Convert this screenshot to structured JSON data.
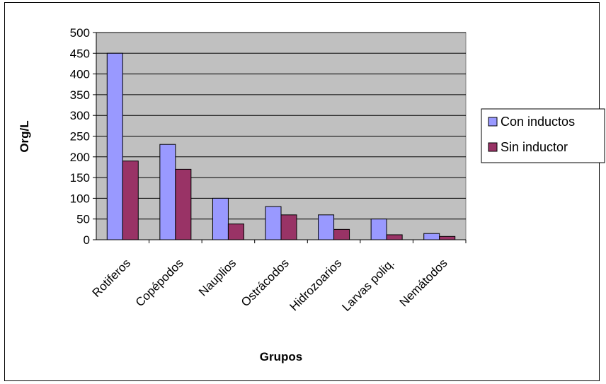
{
  "chart_data": {
    "type": "bar",
    "title": "",
    "xlabel": "Grupos",
    "ylabel": "Org/L",
    "ylim": [
      0,
      500
    ],
    "yticks": [
      0,
      50,
      100,
      150,
      200,
      250,
      300,
      350,
      400,
      450,
      500
    ],
    "grid": true,
    "legend_position": "right",
    "categories": [
      "Rotiferos",
      "Copépodos",
      "Nauplios",
      "Ostrácodos",
      "Hidrozoarios",
      "Larvas poliq.",
      "Nemátodos"
    ],
    "series": [
      {
        "name": "Con inductos",
        "color": "#9999ff",
        "values": [
          450,
          230,
          100,
          80,
          60,
          50,
          15
        ]
      },
      {
        "name": "Sin inductor",
        "color": "#993366",
        "values": [
          190,
          170,
          38,
          60,
          25,
          12,
          8
        ]
      }
    ],
    "plot_background": "#c0c0c0"
  }
}
